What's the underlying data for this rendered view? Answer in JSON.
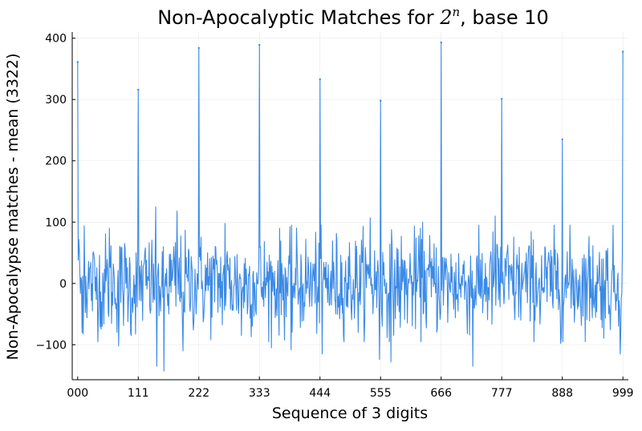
{
  "chart_data": {
    "type": "line",
    "title": {
      "prefix": "Non-Apocalyptic Matches for ",
      "base": "2",
      "exponent": "n",
      "suffix": ", base 10"
    },
    "xlabel": "Sequence of 3 digits",
    "ylabel": "Non-Apocalypse matches - mean (3322)",
    "xlim": [
      -10,
      1009
    ],
    "ylim": [
      -157,
      410
    ],
    "x_ticks": [
      {
        "value": 0,
        "label": "000"
      },
      {
        "value": 111,
        "label": "111"
      },
      {
        "value": 222,
        "label": "222"
      },
      {
        "value": 333,
        "label": "333"
      },
      {
        "value": 444,
        "label": "444"
      },
      {
        "value": 555,
        "label": "555"
      },
      {
        "value": 666,
        "label": "666"
      },
      {
        "value": 777,
        "label": "777"
      },
      {
        "value": 888,
        "label": "888"
      },
      {
        "value": 999,
        "label": "999"
      }
    ],
    "y_ticks": [
      {
        "value": -100,
        "label": "−100"
      },
      {
        "value": 0,
        "label": "0"
      },
      {
        "value": 100,
        "label": "100"
      },
      {
        "value": 200,
        "label": "200"
      },
      {
        "value": 300,
        "label": "300"
      },
      {
        "value": 400,
        "label": "400"
      }
    ],
    "grid": true,
    "legend": "none",
    "series_color": "#3b8ae6",
    "peaks": [
      {
        "x": 0,
        "y": 361
      },
      {
        "x": 111,
        "y": 316
      },
      {
        "x": 222,
        "y": 384
      },
      {
        "x": 333,
        "y": 389
      },
      {
        "x": 444,
        "y": 333
      },
      {
        "x": 555,
        "y": 298
      },
      {
        "x": 666,
        "y": 393
      },
      {
        "x": 777,
        "y": 301
      },
      {
        "x": 888,
        "y": 235
      },
      {
        "x": 999,
        "y": 378
      }
    ],
    "notable_points": [
      {
        "x": 2,
        "y": 72
      },
      {
        "x": 8,
        "y": -80
      },
      {
        "x": 12,
        "y": 94
      },
      {
        "x": 45,
        "y": -70
      },
      {
        "x": 58,
        "y": 90
      },
      {
        "x": 75,
        "y": -102
      },
      {
        "x": 98,
        "y": -85
      },
      {
        "x": 143,
        "y": 125
      },
      {
        "x": 145,
        "y": -135
      },
      {
        "x": 158,
        "y": -143
      },
      {
        "x": 182,
        "y": 118
      },
      {
        "x": 193,
        "y": -110
      },
      {
        "x": 270,
        "y": 98
      },
      {
        "x": 300,
        "y": -85
      },
      {
        "x": 355,
        "y": -105
      },
      {
        "x": 391,
        "y": -108
      },
      {
        "x": 448,
        "y": -115
      },
      {
        "x": 536,
        "y": 107
      },
      {
        "x": 553,
        "y": -124
      },
      {
        "x": 574,
        "y": -128
      },
      {
        "x": 632,
        "y": 100
      },
      {
        "x": 724,
        "y": -135
      },
      {
        "x": 765,
        "y": 110
      },
      {
        "x": 885,
        "y": -98
      },
      {
        "x": 994,
        "y": -115
      }
    ],
    "noise_mean": 0,
    "noise_sd": 40,
    "n_points": 1000
  }
}
